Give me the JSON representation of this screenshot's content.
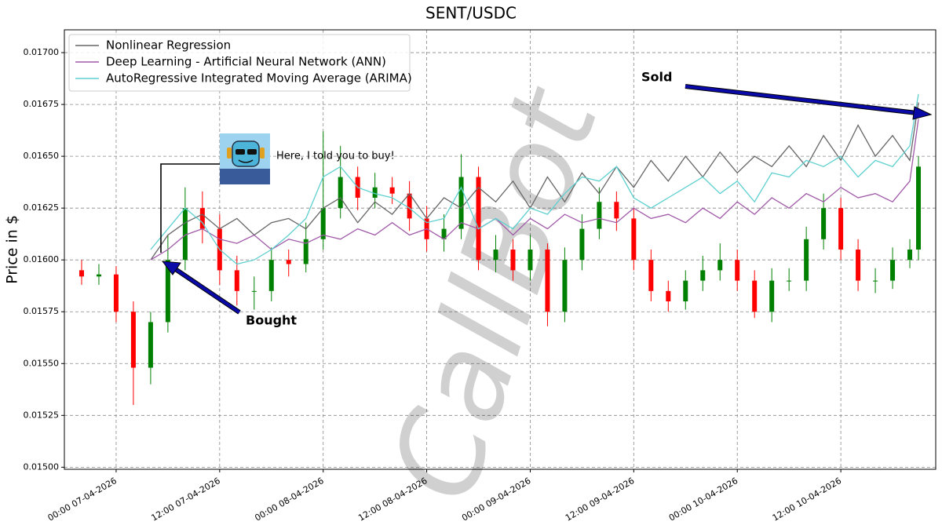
{
  "chart_data": {
    "type": "candlestick",
    "title": "SENT/USDC",
    "y_label": "Price in $",
    "x": [
      "20:00 06-04-2026",
      "22:00 06-04-2026",
      "00:00 07-04-2026",
      "02:00 07-04-2026",
      "04:00 07-04-2026",
      "06:00 07-04-2026",
      "08:00 07-04-2026",
      "10:00 07-04-2026",
      "12:00 07-04-2026",
      "14:00 07-04-2026",
      "16:00 07-04-2026",
      "18:00 07-04-2026",
      "20:00 07-04-2026",
      "22:00 07-04-2026",
      "00:00 08-04-2026",
      "02:00 08-04-2026",
      "04:00 08-04-2026",
      "06:00 08-04-2026",
      "08:00 08-04-2026",
      "10:00 08-04-2026",
      "12:00 08-04-2026",
      "14:00 08-04-2026",
      "16:00 08-04-2026",
      "18:00 08-04-2026",
      "20:00 08-04-2026",
      "22:00 08-04-2026",
      "00:00 09-04-2026",
      "02:00 09-04-2026",
      "04:00 09-04-2026",
      "06:00 09-04-2026",
      "08:00 09-04-2026",
      "10:00 09-04-2026",
      "12:00 09-04-2026",
      "14:00 09-04-2026",
      "16:00 09-04-2026",
      "18:00 09-04-2026",
      "20:00 09-04-2026",
      "22:00 09-04-2026",
      "00:00 10-04-2026",
      "02:00 10-04-2026",
      "04:00 10-04-2026",
      "06:00 10-04-2026",
      "08:00 10-04-2026",
      "10:00 10-04-2026",
      "12:00 10-04-2026",
      "14:00 10-04-2026",
      "16:00 10-04-2026",
      "18:00 10-04-2026",
      "20:00 10-04-2026",
      "21:00 10-04-2026"
    ],
    "open": [
      0.01595,
      0.01592,
      0.01593,
      0.01575,
      0.01548,
      0.0157,
      0.016,
      0.01625,
      0.01615,
      0.01595,
      0.01585,
      0.01585,
      0.016,
      0.01598,
      0.0161,
      0.01625,
      0.0164,
      0.0163,
      0.01635,
      0.01632,
      0.0162,
      0.0161,
      0.01615,
      0.0164,
      0.016,
      0.01605,
      0.01595,
      0.01605,
      0.01575,
      0.016,
      0.01615,
      0.01628,
      0.0162,
      0.016,
      0.01585,
      0.0158,
      0.0159,
      0.01595,
      0.016,
      0.0159,
      0.01575,
      0.0159,
      0.0159,
      0.0161,
      0.01625,
      0.01605,
      0.0159,
      0.0159,
      0.016,
      0.01605
    ],
    "high": [
      0.016,
      0.01598,
      0.01597,
      0.0158,
      0.01575,
      0.01612,
      0.01635,
      0.01633,
      0.01622,
      0.01602,
      0.01592,
      0.01606,
      0.01605,
      0.01618,
      0.01662,
      0.01655,
      0.01645,
      0.01642,
      0.0164,
      0.01638,
      0.01626,
      0.01622,
      0.01651,
      0.01645,
      0.01612,
      0.0161,
      0.01612,
      0.01608,
      0.01606,
      0.01622,
      0.01635,
      0.01633,
      0.01625,
      0.01605,
      0.0159,
      0.01595,
      0.01602,
      0.01608,
      0.01605,
      0.01595,
      0.01596,
      0.01596,
      0.01616,
      0.01632,
      0.0163,
      0.0161,
      0.01596,
      0.01606,
      0.0161,
      0.0165
    ],
    "low": [
      0.01588,
      0.01588,
      0.0157,
      0.0153,
      0.0154,
      0.01565,
      0.01595,
      0.01608,
      0.01588,
      0.01578,
      0.01576,
      0.0158,
      0.01592,
      0.01594,
      0.01605,
      0.0162,
      0.01624,
      0.01625,
      0.01627,
      0.01614,
      0.01604,
      0.01604,
      0.0161,
      0.01595,
      0.01594,
      0.0159,
      0.0159,
      0.01568,
      0.0157,
      0.01595,
      0.0161,
      0.01614,
      0.01595,
      0.0158,
      0.01575,
      0.01576,
      0.01585,
      0.0159,
      0.01585,
      0.01572,
      0.0157,
      0.01585,
      0.01585,
      0.01605,
      0.016,
      0.01585,
      0.01584,
      0.01586,
      0.01596,
      0.016
    ],
    "close": [
      0.01592,
      0.01593,
      0.01575,
      0.01548,
      0.0157,
      0.016,
      0.01625,
      0.01615,
      0.01595,
      0.01585,
      0.01585,
      0.016,
      0.01598,
      0.0161,
      0.01625,
      0.0164,
      0.0163,
      0.01635,
      0.01632,
      0.0162,
      0.0161,
      0.01615,
      0.0164,
      0.016,
      0.01605,
      0.01595,
      0.01605,
      0.01575,
      0.016,
      0.01615,
      0.01628,
      0.0162,
      0.016,
      0.01585,
      0.0158,
      0.0159,
      0.01595,
      0.016,
      0.0159,
      0.01575,
      0.0159,
      0.0159,
      0.0161,
      0.01625,
      0.01605,
      0.0159,
      0.0159,
      0.016,
      0.01605,
      0.01645
    ],
    "up_color": "#008000",
    "down_color": "#ff0000",
    "series": [
      {
        "name": "Nonlinear Regression",
        "color": "#666666",
        "values": [
          null,
          null,
          null,
          null,
          0.016,
          0.01612,
          0.01618,
          0.01622,
          0.01615,
          0.0162,
          0.01612,
          0.01618,
          0.0162,
          0.01615,
          0.01625,
          0.0163,
          0.01618,
          0.01628,
          0.01622,
          0.01632,
          0.0162,
          0.0163,
          0.01625,
          0.01635,
          0.01628,
          0.01638,
          0.01625,
          0.0164,
          0.01628,
          0.01642,
          0.01632,
          0.01645,
          0.01635,
          0.01648,
          0.01638,
          0.0165,
          0.0164,
          0.01652,
          0.01642,
          0.0165,
          0.01645,
          0.01655,
          0.01645,
          0.0166,
          0.01648,
          0.01665,
          0.0165,
          0.0166,
          0.01648,
          0.01676
        ]
      },
      {
        "name": "Deep Learning - Artificial Neural Network (ANN)",
        "color": "#a05aa8",
        "values": [
          null,
          null,
          null,
          null,
          0.016,
          0.01605,
          0.01612,
          0.01615,
          0.0161,
          0.01608,
          0.01612,
          0.01605,
          0.0161,
          0.01608,
          0.01612,
          0.0161,
          0.01615,
          0.01612,
          0.01618,
          0.01612,
          0.01615,
          0.0161,
          0.01618,
          0.01615,
          0.0162,
          0.01612,
          0.0162,
          0.01615,
          0.01622,
          0.01618,
          0.0162,
          0.01618,
          0.01625,
          0.0162,
          0.01622,
          0.01618,
          0.01625,
          0.0162,
          0.01628,
          0.01622,
          0.0163,
          0.01625,
          0.01632,
          0.01628,
          0.01635,
          0.0163,
          0.01632,
          0.01628,
          0.01638,
          0.01668
        ]
      },
      {
        "name": "AutoRegressive Integrated Moving Average (ARIMA)",
        "color": "#5fd0d0",
        "values": [
          null,
          null,
          null,
          null,
          0.01605,
          0.01615,
          0.01625,
          0.01618,
          0.01605,
          0.01598,
          0.016,
          0.01605,
          0.01612,
          0.0162,
          0.0164,
          0.01645,
          0.01635,
          0.01632,
          0.0163,
          0.01625,
          0.01618,
          0.0162,
          0.01635,
          0.01615,
          0.0162,
          0.01615,
          0.01625,
          0.01622,
          0.01632,
          0.0164,
          0.01638,
          0.01645,
          0.0163,
          0.01625,
          0.0163,
          0.01635,
          0.0164,
          0.01632,
          0.01638,
          0.01628,
          0.01642,
          0.0164,
          0.01648,
          0.01645,
          0.0165,
          0.0164,
          0.01648,
          0.01645,
          0.01655,
          0.0168
        ]
      }
    ],
    "xlim": [
      "18:00 06-04-2026",
      "23:00 10-04-2026"
    ],
    "xticks": [
      "00:00 07-04-2026",
      "12:00 07-04-2026",
      "00:00 08-04-2026",
      "12:00 08-04-2026",
      "00:00 09-04-2026",
      "12:00 09-04-2026",
      "00:00 10-04-2026",
      "12:00 10-04-2026"
    ],
    "ylim": [
      0.01499,
      0.01711
    ],
    "yticks": [
      {
        "value": 0.015,
        "label": "0.01500"
      },
      {
        "value": 0.01525,
        "label": "0.01525"
      },
      {
        "value": 0.0155,
        "label": "0.01550"
      },
      {
        "value": 0.01575,
        "label": "0.01575"
      },
      {
        "value": 0.016,
        "label": "0.01600"
      },
      {
        "value": 0.01625,
        "label": "0.01625"
      },
      {
        "value": 0.0165,
        "label": "0.01650"
      },
      {
        "value": 0.01675,
        "label": "0.01675"
      },
      {
        "value": 0.017,
        "label": "0.01700"
      }
    ],
    "grid": true,
    "legend": "upper left",
    "annotations": {
      "bought": "Bought",
      "sold": "Sold",
      "callout": "Here, I told you to buy!",
      "watermark": "CallBot"
    }
  }
}
